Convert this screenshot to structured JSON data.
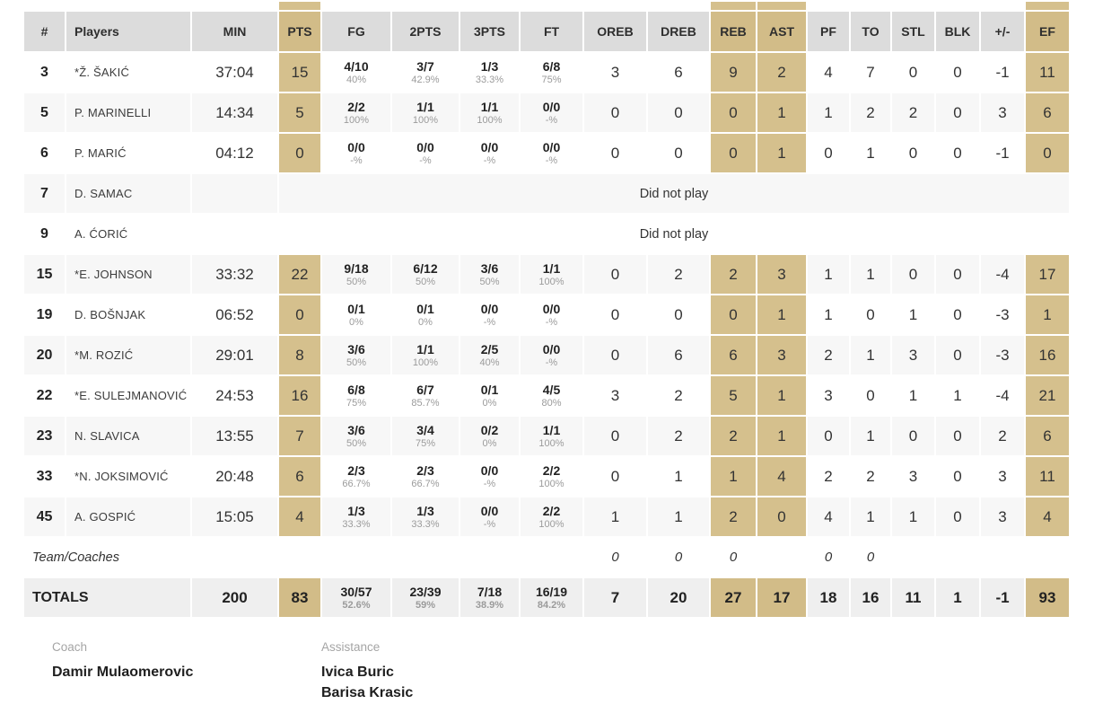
{
  "colors": {
    "header_bg": "#dcdcdc",
    "highlight_tan": "#d5c08d",
    "header_highlight_tan": "#d2bc88",
    "row_alt_bg": "#f7f7f7",
    "totals_bg": "#efefef",
    "pct_text": "#9b9b9b",
    "text": "#333333"
  },
  "table": {
    "columns": [
      {
        "key": "num",
        "label": "#",
        "highlight": false
      },
      {
        "key": "player",
        "label": "Players",
        "highlight": false
      },
      {
        "key": "min",
        "label": "MIN",
        "highlight": false
      },
      {
        "key": "pts",
        "label": "PTS",
        "highlight": true
      },
      {
        "key": "fg",
        "label": "FG",
        "highlight": false
      },
      {
        "key": "p2",
        "label": "2PTS",
        "highlight": false
      },
      {
        "key": "p3",
        "label": "3PTS",
        "highlight": false
      },
      {
        "key": "ft",
        "label": "FT",
        "highlight": false
      },
      {
        "key": "oreb",
        "label": "OREB",
        "highlight": false
      },
      {
        "key": "dreb",
        "label": "DREB",
        "highlight": false
      },
      {
        "key": "reb",
        "label": "REB",
        "highlight": true
      },
      {
        "key": "ast",
        "label": "AST",
        "highlight": true
      },
      {
        "key": "pf",
        "label": "PF",
        "highlight": false
      },
      {
        "key": "to",
        "label": "TO",
        "highlight": false
      },
      {
        "key": "stl",
        "label": "STL",
        "highlight": false
      },
      {
        "key": "blk",
        "label": "BLK",
        "highlight": false
      },
      {
        "key": "pm",
        "label": "+/-",
        "highlight": false
      },
      {
        "key": "ef",
        "label": "EF",
        "highlight": true
      }
    ],
    "did_not_play_label": "Did not play",
    "players": [
      {
        "num": "3",
        "player": "*Ž. ŠAKIĆ",
        "min": "37:04",
        "pts": "15",
        "fg": [
          "4/10",
          "40%"
        ],
        "p2": [
          "3/7",
          "42.9%"
        ],
        "p3": [
          "1/3",
          "33.3%"
        ],
        "ft": [
          "6/8",
          "75%"
        ],
        "oreb": "3",
        "dreb": "6",
        "reb": "9",
        "ast": "2",
        "pf": "4",
        "to": "7",
        "stl": "0",
        "blk": "0",
        "pm": "-1",
        "ef": "11",
        "dnp": false
      },
      {
        "num": "5",
        "player": "P. MARINELLI",
        "min": "14:34",
        "pts": "5",
        "fg": [
          "2/2",
          "100%"
        ],
        "p2": [
          "1/1",
          "100%"
        ],
        "p3": [
          "1/1",
          "100%"
        ],
        "ft": [
          "0/0",
          "-%"
        ],
        "oreb": "0",
        "dreb": "0",
        "reb": "0",
        "ast": "1",
        "pf": "1",
        "to": "2",
        "stl": "2",
        "blk": "0",
        "pm": "3",
        "ef": "6",
        "dnp": false
      },
      {
        "num": "6",
        "player": "P. MARIĆ",
        "min": "04:12",
        "pts": "0",
        "fg": [
          "0/0",
          "-%"
        ],
        "p2": [
          "0/0",
          "-%"
        ],
        "p3": [
          "0/0",
          "-%"
        ],
        "ft": [
          "0/0",
          "-%"
        ],
        "oreb": "0",
        "dreb": "0",
        "reb": "0",
        "ast": "1",
        "pf": "0",
        "to": "1",
        "stl": "0",
        "blk": "0",
        "pm": "-1",
        "ef": "0",
        "dnp": false
      },
      {
        "num": "7",
        "player": "D. SAMAC",
        "dnp": true
      },
      {
        "num": "9",
        "player": "A. ĆORIĆ",
        "dnp": true
      },
      {
        "num": "15",
        "player": "*E. JOHNSON",
        "min": "33:32",
        "pts": "22",
        "fg": [
          "9/18",
          "50%"
        ],
        "p2": [
          "6/12",
          "50%"
        ],
        "p3": [
          "3/6",
          "50%"
        ],
        "ft": [
          "1/1",
          "100%"
        ],
        "oreb": "0",
        "dreb": "2",
        "reb": "2",
        "ast": "3",
        "pf": "1",
        "to": "1",
        "stl": "0",
        "blk": "0",
        "pm": "-4",
        "ef": "17",
        "dnp": false
      },
      {
        "num": "19",
        "player": "D. BOŠNJAK",
        "min": "06:52",
        "pts": "0",
        "fg": [
          "0/1",
          "0%"
        ],
        "p2": [
          "0/1",
          "0%"
        ],
        "p3": [
          "0/0",
          "-%"
        ],
        "ft": [
          "0/0",
          "-%"
        ],
        "oreb": "0",
        "dreb": "0",
        "reb": "0",
        "ast": "1",
        "pf": "1",
        "to": "0",
        "stl": "1",
        "blk": "0",
        "pm": "-3",
        "ef": "1",
        "dnp": false
      },
      {
        "num": "20",
        "player": "*M. ROZIĆ",
        "min": "29:01",
        "pts": "8",
        "fg": [
          "3/6",
          "50%"
        ],
        "p2": [
          "1/1",
          "100%"
        ],
        "p3": [
          "2/5",
          "40%"
        ],
        "ft": [
          "0/0",
          "-%"
        ],
        "oreb": "0",
        "dreb": "6",
        "reb": "6",
        "ast": "3",
        "pf": "2",
        "to": "1",
        "stl": "3",
        "blk": "0",
        "pm": "-3",
        "ef": "16",
        "dnp": false
      },
      {
        "num": "22",
        "player": "*E. SULEJMANOVIĆ",
        "min": "24:53",
        "pts": "16",
        "fg": [
          "6/8",
          "75%"
        ],
        "p2": [
          "6/7",
          "85.7%"
        ],
        "p3": [
          "0/1",
          "0%"
        ],
        "ft": [
          "4/5",
          "80%"
        ],
        "oreb": "3",
        "dreb": "2",
        "reb": "5",
        "ast": "1",
        "pf": "3",
        "to": "0",
        "stl": "1",
        "blk": "1",
        "pm": "-4",
        "ef": "21",
        "dnp": false
      },
      {
        "num": "23",
        "player": "N. SLAVICA",
        "min": "13:55",
        "pts": "7",
        "fg": [
          "3/6",
          "50%"
        ],
        "p2": [
          "3/4",
          "75%"
        ],
        "p3": [
          "0/2",
          "0%"
        ],
        "ft": [
          "1/1",
          "100%"
        ],
        "oreb": "0",
        "dreb": "2",
        "reb": "2",
        "ast": "1",
        "pf": "0",
        "to": "1",
        "stl": "0",
        "blk": "0",
        "pm": "2",
        "ef": "6",
        "dnp": false
      },
      {
        "num": "33",
        "player": "*N. JOKSIMOVIĆ",
        "min": "20:48",
        "pts": "6",
        "fg": [
          "2/3",
          "66.7%"
        ],
        "p2": [
          "2/3",
          "66.7%"
        ],
        "p3": [
          "0/0",
          "-%"
        ],
        "ft": [
          "2/2",
          "100%"
        ],
        "oreb": "0",
        "dreb": "1",
        "reb": "1",
        "ast": "4",
        "pf": "2",
        "to": "2",
        "stl": "3",
        "blk": "0",
        "pm": "3",
        "ef": "11",
        "dnp": false
      },
      {
        "num": "45",
        "player": "A. GOSPIĆ",
        "min": "15:05",
        "pts": "4",
        "fg": [
          "1/3",
          "33.3%"
        ],
        "p2": [
          "1/3",
          "33.3%"
        ],
        "p3": [
          "0/0",
          "-%"
        ],
        "ft": [
          "2/2",
          "100%"
        ],
        "oreb": "1",
        "dreb": "1",
        "reb": "2",
        "ast": "0",
        "pf": "4",
        "to": "1",
        "stl": "1",
        "blk": "0",
        "pm": "3",
        "ef": "4",
        "dnp": false
      }
    ],
    "team_row": {
      "label": "Team/Coaches",
      "oreb": "0",
      "dreb": "0",
      "reb": "0",
      "ast": "",
      "pf": "0",
      "to": "0",
      "stl": "",
      "blk": "",
      "pm": "",
      "ef": ""
    },
    "totals": {
      "label": "TOTALS",
      "min": "200",
      "pts": "83",
      "fg": [
        "30/57",
        "52.6%"
      ],
      "p2": [
        "23/39",
        "59%"
      ],
      "p3": [
        "7/18",
        "38.9%"
      ],
      "ft": [
        "16/19",
        "84.2%"
      ],
      "oreb": "7",
      "dreb": "20",
      "reb": "27",
      "ast": "17",
      "pf": "18",
      "to": "16",
      "stl": "11",
      "blk": "1",
      "pm": "-1",
      "ef": "93"
    }
  },
  "footer": {
    "coach_label": "Coach",
    "coach_name": "Damir Mulaomerovic",
    "assistance_label": "Assistance",
    "assistants": [
      "Ivica Buric",
      "Barisa Krasic"
    ]
  }
}
